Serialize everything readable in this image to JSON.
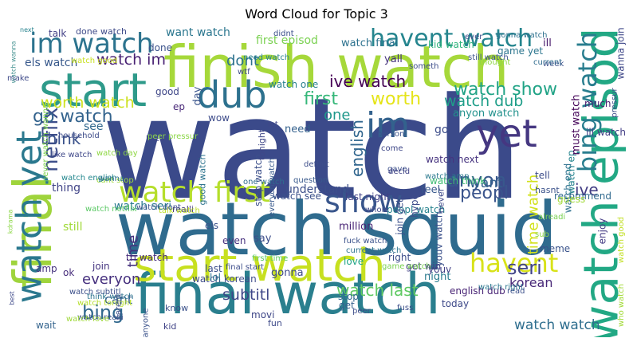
{
  "figure": {
    "title": "Word Cloud for Topic 3"
  },
  "words": [
    {
      "text": "watch",
      "color": "#3b4a8a"
    },
    {
      "text": "watch squid",
      "color": "#2f6b8e"
    },
    {
      "text": "finish watch",
      "color": "#a6d83a"
    },
    {
      "text": "final watch",
      "color": "#2a7f8e"
    },
    {
      "text": "final",
      "color": "#9fd43c"
    },
    {
      "text": "start",
      "color": "#2e9a8a"
    },
    {
      "text": "start watch",
      "color": "#c7e020"
    },
    {
      "text": "watch episod",
      "color": "#22a884"
    },
    {
      "text": "dub",
      "color": "#2d718e"
    },
    {
      "text": "im",
      "color": "#33628d"
    },
    {
      "text": "yet",
      "color": "#453781"
    },
    {
      "text": "show",
      "color": "#39568c"
    },
    {
      "text": "watch first",
      "color": "#b5de2b"
    },
    {
      "text": "im watch",
      "color": "#2c738e"
    },
    {
      "text": "havent watch",
      "color": "#25858e"
    },
    {
      "text": "watch yet",
      "color": "#2a788e"
    },
    {
      "text": "havent",
      "color": "#d8e219"
    },
    {
      "text": "bing watch",
      "color": "#287d8e"
    },
    {
      "text": "watch show",
      "color": "#20a386"
    },
    {
      "text": "netflix",
      "color": "#3d4e8a"
    },
    {
      "text": "worth watch",
      "color": "#cde11d"
    },
    {
      "text": "go watch",
      "color": "#33638d"
    },
    {
      "text": "watch im",
      "color": "#482173"
    },
    {
      "text": "first",
      "color": "#35b779"
    },
    {
      "text": "watch dub",
      "color": "#1f9e89"
    },
    {
      "text": "worth",
      "color": "#e5e419"
    },
    {
      "text": "dont",
      "color": "#2c728e"
    },
    {
      "text": "ive watch",
      "color": "#440154"
    },
    {
      "text": "english",
      "color": "#31668e"
    },
    {
      "text": "think",
      "color": "#3b528b"
    },
    {
      "text": "peopl",
      "color": "#3a548c"
    },
    {
      "text": "anyon",
      "color": "#38588c"
    },
    {
      "text": "ive",
      "color": "#433d84"
    },
    {
      "text": "seri",
      "color": "#414487"
    },
    {
      "text": "bing",
      "color": "#31688e"
    },
    {
      "text": "watch last",
      "color": "#5ec962"
    },
    {
      "text": "korean",
      "color": "#482878"
    },
    {
      "text": "subtitl",
      "color": "#3f4788"
    },
    {
      "text": "everyon",
      "color": "#46307e"
    },
    {
      "text": "cant",
      "color": "#355f8d"
    },
    {
      "text": "watch watch",
      "color": "#2e6e8e"
    },
    {
      "text": "time",
      "color": "#46327e"
    },
    {
      "text": "time watch",
      "color": "#d2e21b"
    },
    {
      "text": "want",
      "color": "#34618d"
    },
    {
      "text": "one",
      "color": "#1f988b"
    },
    {
      "text": "want watch",
      "color": "#2a768e"
    },
    {
      "text": "first episod",
      "color": "#7ad151"
    },
    {
      "text": "done watch",
      "color": "#3e4a89"
    },
    {
      "text": "talk",
      "color": "#424086"
    },
    {
      "text": "next",
      "color": "#26828e"
    },
    {
      "text": "watch wanna",
      "color": "#3f8f8e"
    },
    {
      "text": "els watch",
      "color": "#38598c"
    },
    {
      "text": "didnt",
      "color": "#3c508b"
    },
    {
      "text": "watch final",
      "color": "#2c718e"
    },
    {
      "text": "kid watch",
      "color": "#2fb47c"
    },
    {
      "text": "game yet",
      "color": "#2b758e"
    },
    {
      "text": "ill",
      "color": "#481a6c"
    },
    {
      "text": "yall",
      "color": "#45337d"
    },
    {
      "text": "tri watch",
      "color": "#472c7a"
    },
    {
      "text": "watch korean",
      "color": "#3e4c8a"
    },
    {
      "text": "watch seri",
      "color": "#297a8e"
    },
    {
      "text": "watch see",
      "color": "#3b518b"
    },
    {
      "text": "watch one",
      "color": "#27808e"
    },
    {
      "text": "stop watch",
      "color": "#3c4f8a"
    },
    {
      "text": "anyon watch",
      "color": "#21918c"
    },
    {
      "text": "watch end",
      "color": "#2d708e"
    },
    {
      "text": "watch ep",
      "color": "#25848e"
    },
    {
      "text": "must watch",
      "color": "#450559"
    },
    {
      "text": "ill watch",
      "color": "#433e85"
    },
    {
      "text": "wanna join",
      "color": "#3f4889"
    },
    {
      "text": "much",
      "color": "#481f70"
    },
    {
      "text": "recommend",
      "color": "#30698e"
    },
    {
      "text": "guess",
      "color": "#a2da37"
    },
    {
      "text": "tell",
      "color": "#3d4d8a"
    },
    {
      "text": "hasnt",
      "color": "#3b528b"
    },
    {
      "text": "enjoy",
      "color": "#443b84"
    },
    {
      "text": "meme",
      "color": "#3a538b"
    },
    {
      "text": "english dub",
      "color": "#482475"
    },
    {
      "text": "get win",
      "color": "#424186"
    },
    {
      "text": "right",
      "color": "#3d4e8a"
    },
    {
      "text": "night",
      "color": "#297b8e"
    },
    {
      "text": "today",
      "color": "#3e4989"
    },
    {
      "text": "stop",
      "color": "#31688e"
    },
    {
      "text": "get",
      "color": "#34608d"
    },
    {
      "text": "movi",
      "color": "#3f4788"
    },
    {
      "text": "know",
      "color": "#3b518b"
    },
    {
      "text": "kid",
      "color": "#414487"
    },
    {
      "text": "fun",
      "color": "#3e4a89"
    },
    {
      "text": "wait",
      "color": "#33638d"
    },
    {
      "text": "amp",
      "color": "#46337f"
    },
    {
      "text": "still",
      "color": "#a0da39"
    },
    {
      "text": "join",
      "color": "#453581"
    },
    {
      "text": "ok",
      "color": "#472d7b"
    },
    {
      "text": "lol",
      "color": "#2b758e"
    },
    {
      "text": "say",
      "color": "#3d4e8a"
    },
    {
      "text": "even",
      "color": "#46307e"
    },
    {
      "text": "love",
      "color": "#20a486"
    },
    {
      "text": "gonna",
      "color": "#3e4a89"
    },
    {
      "text": "million",
      "color": "#482475"
    },
    {
      "text": "last night",
      "color": "#424186"
    },
    {
      "text": "understand",
      "color": "#3c4f8a"
    },
    {
      "text": "need",
      "color": "#34618d"
    },
    {
      "text": "tonight",
      "color": "#3f4788"
    },
    {
      "text": "good watch",
      "color": "#2c738e"
    },
    {
      "text": "realli",
      "color": "#44397d"
    },
    {
      "text": "els",
      "color": "#3b528b"
    },
    {
      "text": "peopl watch",
      "color": "#26828e"
    },
    {
      "text": "join get",
      "color": "#3c508b"
    },
    {
      "text": "hype",
      "color": "#3e4c8a"
    },
    {
      "text": "feel",
      "color": "#38588c"
    },
    {
      "text": "youv watch",
      "color": "#3b518b"
    },
    {
      "text": "go",
      "color": "#3d4d8a"
    },
    {
      "text": "youv",
      "color": "#424086"
    },
    {
      "text": "never",
      "color": "#3e4989"
    },
    {
      "text": "day",
      "color": "#3a548c"
    },
    {
      "text": "see",
      "color": "#31688e"
    },
    {
      "text": "ep",
      "color": "#482878"
    },
    {
      "text": "done",
      "color": "#3b528b"
    },
    {
      "text": "good",
      "color": "#3f4788"
    },
    {
      "text": "thing",
      "color": "#414487"
    },
    {
      "text": "wow",
      "color": "#3e4c8a"
    },
    {
      "text": "last",
      "color": "#3c508b"
    },
    {
      "text": "everyon watch",
      "color": "#38598c"
    },
    {
      "text": "one watch",
      "color": "#2f6b8e"
    },
    {
      "text": "cant stop",
      "color": "#9dd93b"
    },
    {
      "text": "watch english",
      "color": "#24878e"
    },
    {
      "text": "liked",
      "color": "#3f4889"
    },
    {
      "text": "wanna",
      "color": "#2d708e"
    },
    {
      "text": "peer pressur",
      "color": "#8bd646"
    },
    {
      "text": "watch good",
      "color": "#c8e020"
    },
    {
      "text": "watch netflix",
      "color": "#5ac864"
    },
    {
      "text": "never watch wanna",
      "color": "#7fd34e"
    },
    {
      "text": "watch think",
      "color": "#3fbc73"
    },
    {
      "text": "watch next",
      "color": "#46337f"
    },
    {
      "text": "watch amp",
      "color": "#2a788e"
    },
    {
      "text": "talk watch",
      "color": "#bddf26"
    },
    {
      "text": "gonna watch",
      "color": "#2d718e"
    },
    {
      "text": "still watch",
      "color": "#3b528b"
    },
    {
      "text": "need watch",
      "color": "#27808e"
    },
    {
      "text": "wtf",
      "color": "#3e4a89"
    },
    {
      "text": "someth",
      "color": "#3d4d8a"
    },
    {
      "text": "thought",
      "color": "#8fd744"
    },
    {
      "text": "week",
      "color": "#3c4f8a"
    },
    {
      "text": "current",
      "color": "#2f6b8e"
    },
    {
      "text": "ever",
      "color": "#3e4c8a"
    },
    {
      "text": "person",
      "color": "#3b518b"
    },
    {
      "text": "come",
      "color": "#3f4788"
    },
    {
      "text": "gave",
      "color": "#3c508b"
    },
    {
      "text": "decid",
      "color": "#414487"
    },
    {
      "text": "definit",
      "color": "#3d4e8a"
    },
    {
      "text": "question",
      "color": "#38598c"
    },
    {
      "text": "whole",
      "color": "#3e4989"
    },
    {
      "text": "fuck watch",
      "color": "#3b528b"
    },
    {
      "text": "current watch",
      "color": "#2c728e"
    },
    {
      "text": "final start",
      "color": "#3d4d8a"
    },
    {
      "text": "first time",
      "color": "#5ec962"
    },
    {
      "text": "game watch",
      "color": "#7ad151"
    },
    {
      "text": "watch right",
      "color": "#2a768e"
    },
    {
      "text": "watch subtitl",
      "color": "#3c4f8a"
    },
    {
      "text": "watch tonight",
      "color": "#b5de2b"
    },
    {
      "text": "watch realli",
      "color": "#3b518b"
    },
    {
      "text": "like watch",
      "color": "#3f4889"
    },
    {
      "text": "household",
      "color": "#3e4c8a"
    },
    {
      "text": "watch day",
      "color": "#8fd744"
    },
    {
      "text": "watch dont",
      "color": "#3c508b"
    },
    {
      "text": "think watch",
      "color": "#2c738e"
    },
    {
      "text": "parent",
      "color": "#3d4e8a"
    },
    {
      "text": "best",
      "color": "#3e4989"
    },
    {
      "text": "kdrama",
      "color": "#8bd646"
    },
    {
      "text": "watch love",
      "color": "#9fd93a"
    },
    {
      "text": "anyone",
      "color": "#3b528b"
    },
    {
      "text": "peer",
      "color": "#3d4d8a"
    },
    {
      "text": "fuss",
      "color": "#3c4f8a"
    },
    {
      "text": "make",
      "color": "#3e4a89"
    },
    {
      "text": "let",
      "color": "#3f4788"
    },
    {
      "text": "sub",
      "color": "#8fd744"
    },
    {
      "text": "alreadi",
      "color": "#7ad151"
    },
    {
      "text": "read",
      "color": "#3c508b"
    },
    {
      "text": "who watch",
      "color": "#a2da37"
    },
    {
      "text": "pressur",
      "color": "#3d4e8a"
    },
    {
      "text": "watch good",
      "color": "#c2df23"
    },
    {
      "text": "moni",
      "color": "#3b528b"
    },
    {
      "text": "watch watch",
      "color": "#38598c"
    }
  ]
}
